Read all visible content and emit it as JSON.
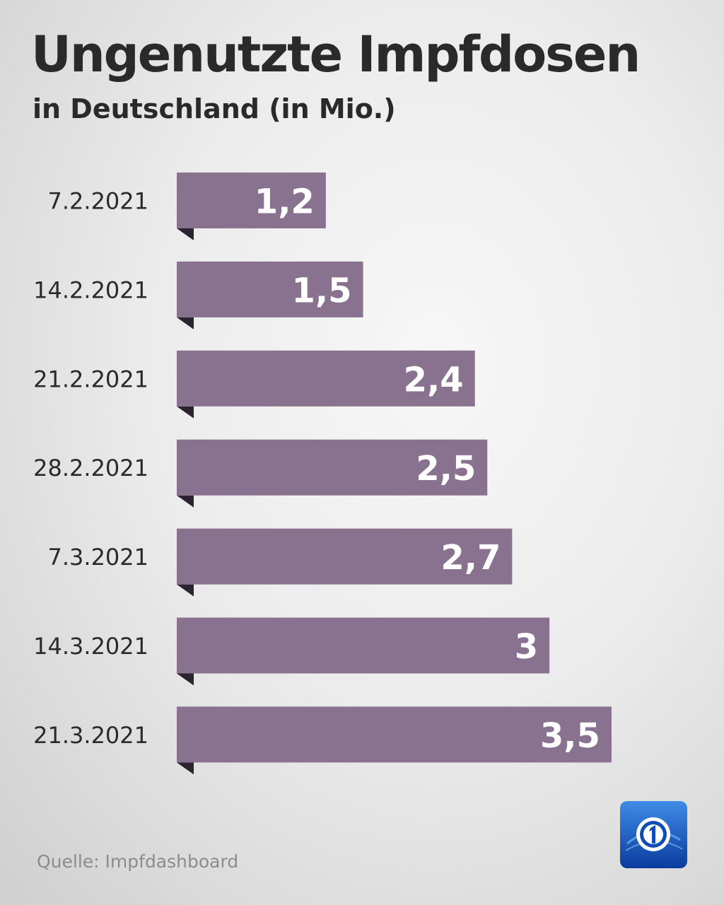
{
  "header": {
    "title": "Ungenutzte Impfdosen",
    "subtitle": "in Deutschland (in Mio.)"
  },
  "footer": {
    "source": "Quelle: Impfdashboard"
  },
  "logo": {
    "icon": "tagesschau-1-logo-icon"
  },
  "colors": {
    "bar": "#88728f",
    "bar_shadow": "#2b2330",
    "value_text": "#ffffff",
    "category_text": "#2a2a2a",
    "logo_blue": "#0f4cb6"
  },
  "chart_data": {
    "type": "bar",
    "orientation": "horizontal",
    "categories": [
      "7.2.2021",
      "14.2.2021",
      "21.2.2021",
      "28.2.2021",
      "7.3.2021",
      "14.3.2021",
      "21.3.2021"
    ],
    "values": [
      1.2,
      1.5,
      2.4,
      2.5,
      2.7,
      3,
      3.5
    ],
    "value_labels": [
      "1,2",
      "1,5",
      "2,4",
      "2,5",
      "2,7",
      "3",
      "3,5"
    ],
    "xlim": [
      0,
      3.5
    ],
    "grid": false,
    "legend": "none"
  }
}
